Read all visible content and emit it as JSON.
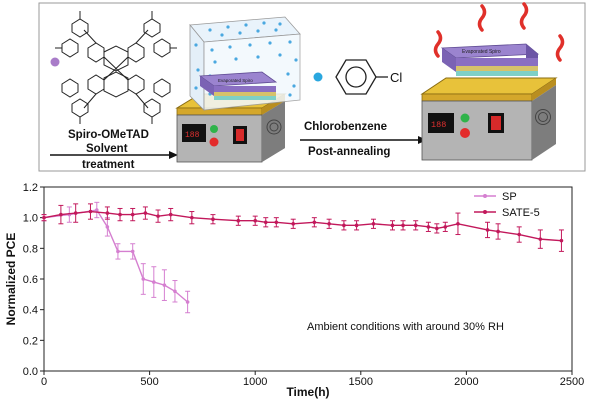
{
  "scheme": {
    "molecule_label": "Spiro-OMeTAD",
    "step1_line1": "Solvent",
    "step1_line2": "treatment",
    "solvent_label": "Chlorobenzene",
    "step2_label": "Post-annealing",
    "chlorine_label": "Cl",
    "film_label_left": "Evaporated Spiro",
    "film_label_right": "Evaporated Spiro",
    "colors": {
      "molecule_dot": "#a97cc9",
      "solvent_dot": "#2aa7df",
      "film_purple": "#8a6fc2",
      "hotplate_yellow": "#e8c23a",
      "heat_red": "#e0302a"
    }
  },
  "chart_data": {
    "type": "line",
    "xlabel": "Time(h)",
    "ylabel": "Normalized PCE",
    "xlim": [
      0,
      2500
    ],
    "ylim": [
      0.0,
      1.2
    ],
    "xticks": [
      0,
      500,
      1000,
      1500,
      2000,
      2500
    ],
    "yticks": [
      0.0,
      0.2,
      0.4,
      0.6,
      0.8,
      1.0,
      1.2
    ],
    "legend_position": "top-right",
    "annotation": "Ambient conditions with around 30% RH",
    "series": [
      {
        "name": "SP",
        "color": "#d57fd0",
        "x": [
          0,
          120,
          250,
          300,
          350,
          420,
          470,
          520,
          570,
          620,
          680
        ],
        "y": [
          1.0,
          1.02,
          1.05,
          0.94,
          0.78,
          0.78,
          0.6,
          0.58,
          0.56,
          0.52,
          0.45
        ],
        "err": [
          0.02,
          0.05,
          0.05,
          0.06,
          0.05,
          0.05,
          0.1,
          0.1,
          0.1,
          0.07,
          0.07
        ]
      },
      {
        "name": "SATE-5",
        "color": "#c2185b",
        "x": [
          0,
          80,
          150,
          220,
          300,
          360,
          420,
          480,
          540,
          600,
          700,
          800,
          920,
          1000,
          1050,
          1100,
          1180,
          1280,
          1350,
          1420,
          1480,
          1560,
          1650,
          1700,
          1760,
          1820,
          1860,
          1900,
          1960,
          2100,
          2150,
          2250,
          2350,
          2450
        ],
        "y": [
          1.0,
          1.02,
          1.03,
          1.04,
          1.03,
          1.02,
          1.02,
          1.03,
          1.01,
          1.02,
          1.0,
          0.99,
          0.98,
          0.98,
          0.97,
          0.97,
          0.96,
          0.97,
          0.96,
          0.95,
          0.95,
          0.96,
          0.95,
          0.95,
          0.95,
          0.94,
          0.93,
          0.94,
          0.96,
          0.92,
          0.91,
          0.89,
          0.86,
          0.85
        ],
        "err": [
          0.02,
          0.06,
          0.06,
          0.05,
          0.04,
          0.04,
          0.04,
          0.04,
          0.04,
          0.04,
          0.04,
          0.03,
          0.03,
          0.03,
          0.03,
          0.03,
          0.03,
          0.03,
          0.03,
          0.03,
          0.03,
          0.03,
          0.03,
          0.03,
          0.03,
          0.03,
          0.03,
          0.03,
          0.07,
          0.05,
          0.05,
          0.05,
          0.06,
          0.07
        ]
      }
    ]
  }
}
